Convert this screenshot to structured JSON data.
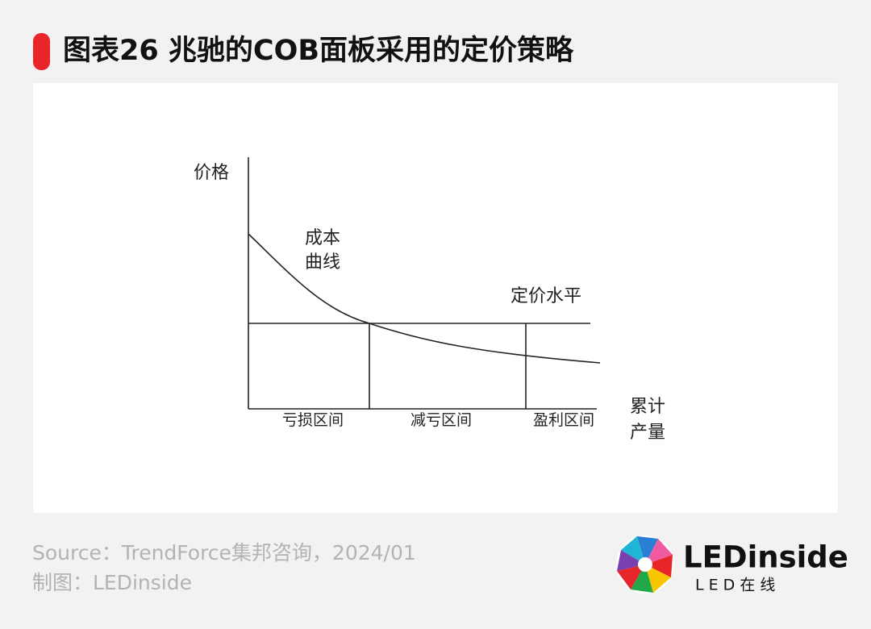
{
  "header": {
    "title": "图表26 兆驰的COB面板采用的定价策略"
  },
  "diagram": {
    "y_axis_label": "价格",
    "x_axis_label": [
      "累计",
      "产量"
    ],
    "cost_curve_label": [
      "成本",
      "曲线"
    ],
    "price_level_label": "定价水平",
    "zones": [
      "亏损区间",
      "减亏区间",
      "盈利区间"
    ]
  },
  "footer": {
    "source": "Source：TrendForce集邦咨询，2024/01",
    "credit": "制图：LEDinside"
  },
  "logo": {
    "name": "LEDinside",
    "subtitle": "L E D 在 线"
  }
}
